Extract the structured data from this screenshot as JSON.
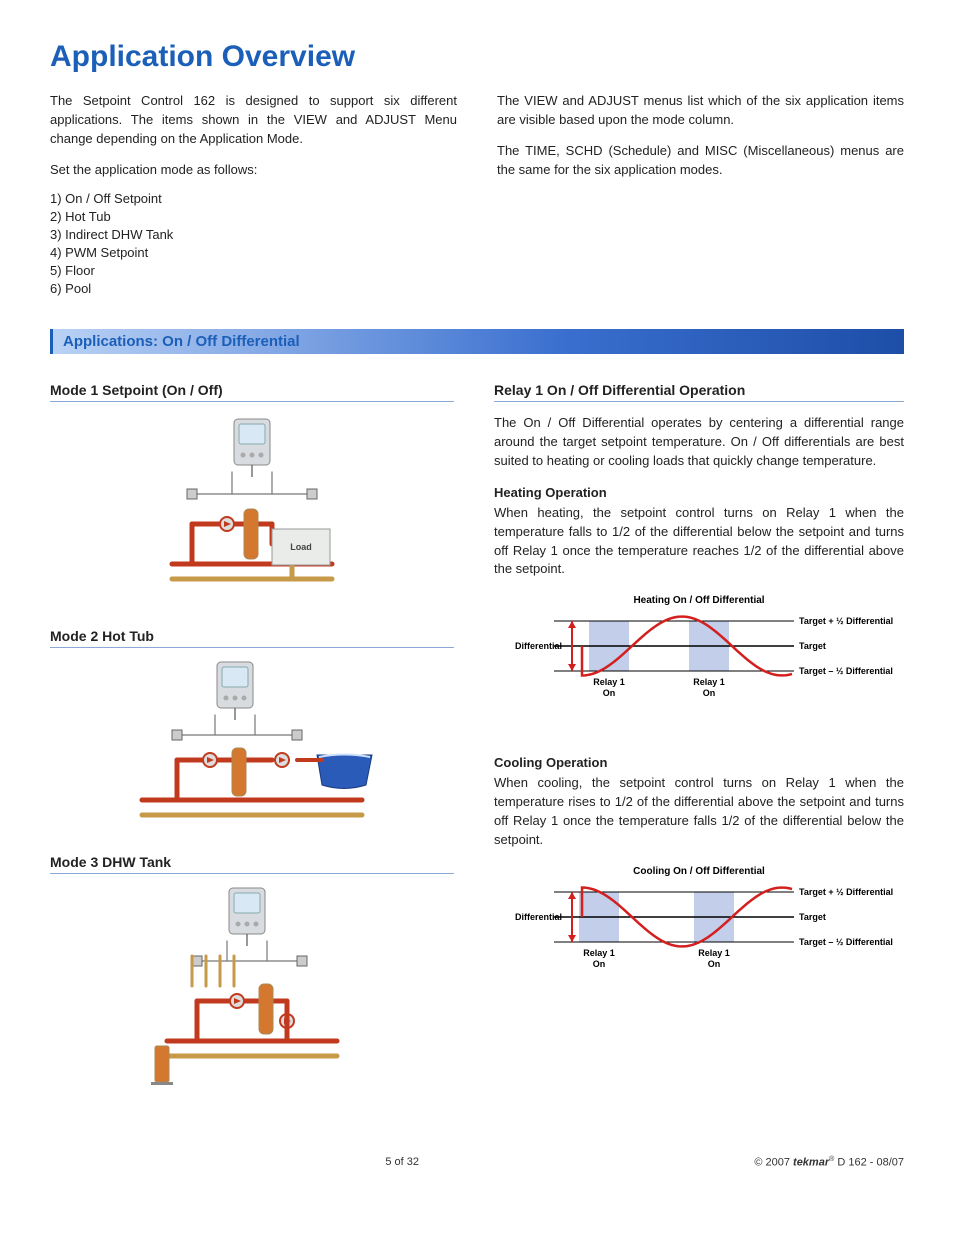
{
  "title": "Application Overview",
  "intro_left_p1": "The Setpoint Control 162 is designed to support six different applications. The items shown in the VIEW and ADJUST Menu change depending on the Application Mode.",
  "intro_left_p2": "Set the application mode as follows:",
  "modes": [
    "On / Off Setpoint",
    "Hot Tub",
    "Indirect DHW Tank",
    "PWM Setpoint",
    "Floor",
    "Pool"
  ],
  "intro_right_p1": "The VIEW and ADJUST menus list which of the six application items are visible based upon the mode column.",
  "intro_right_p2": "The TIME, SCHD (Schedule) and MISC (Miscellaneous) menus are the same for the six application modes.",
  "section_bar": "Applications: On / Off Differential",
  "mode1_head": "Mode 1 Setpoint (On / Off)",
  "mode2_head": "Mode 2 Hot Tub",
  "mode3_head": "Mode 3 DHW Tank",
  "relay_head": "Relay 1 On / Off Differential Operation",
  "relay_p1": "The On / Off Differential operates by centering a differential range around the target setpoint temperature. On / Off differentials are best suited to heating or cooling loads that quickly change temperature.",
  "heat_head": "Heating Operation",
  "heat_p": "When heating, the setpoint control turns on Relay 1 when the temperature falls to 1/2 of the differential below the setpoint and turns off Relay 1 once the temperature reaches 1/2 of the differential above the setpoint.",
  "cool_head": "Cooling Operation",
  "cool_p": "When cooling, the setpoint control turns on Relay 1 when the temperature rises to 1/2 of the differential above the setpoint and turns off Relay 1 once the temperature falls 1/2 of the differential below the setpoint.",
  "chart_heating": {
    "title": "Heating On / Off Differential",
    "diff_label": "Differential",
    "relay_label": "Relay 1\nOn",
    "r1": "Target + ½ Differential",
    "r2": "Target",
    "r3": "Target – ½ Differential",
    "colors": {
      "curve": "#d41f1f",
      "band": "#b7c6e6",
      "arrow": "#d41f1f",
      "line": "#000"
    }
  },
  "chart_cooling": {
    "title": "Cooling On / Off Differential",
    "diff_label": "Differential",
    "relay_label": "Relay 1\nOn",
    "r1": "Target + ½ Differential",
    "r2": "Target",
    "r3": "Target – ½ Differential",
    "colors": {
      "curve": "#d41f1f",
      "band": "#b7c6e6",
      "arrow": "#d41f1f",
      "line": "#000"
    }
  },
  "diagram": {
    "load_label": "Load",
    "colors": {
      "hot": "#c23a1e",
      "cold": "#c79a4a",
      "device": "#d8dce0",
      "screen": "#d9e8f5",
      "load": "#e9ece8",
      "water": "#2a5bb8",
      "tank": "#d4782f"
    }
  },
  "footer": {
    "page": "5 of 32",
    "copyright": "© 2007",
    "brand": "tekmar",
    "doc": "D 162 - 08/07",
    "reg": "®"
  }
}
